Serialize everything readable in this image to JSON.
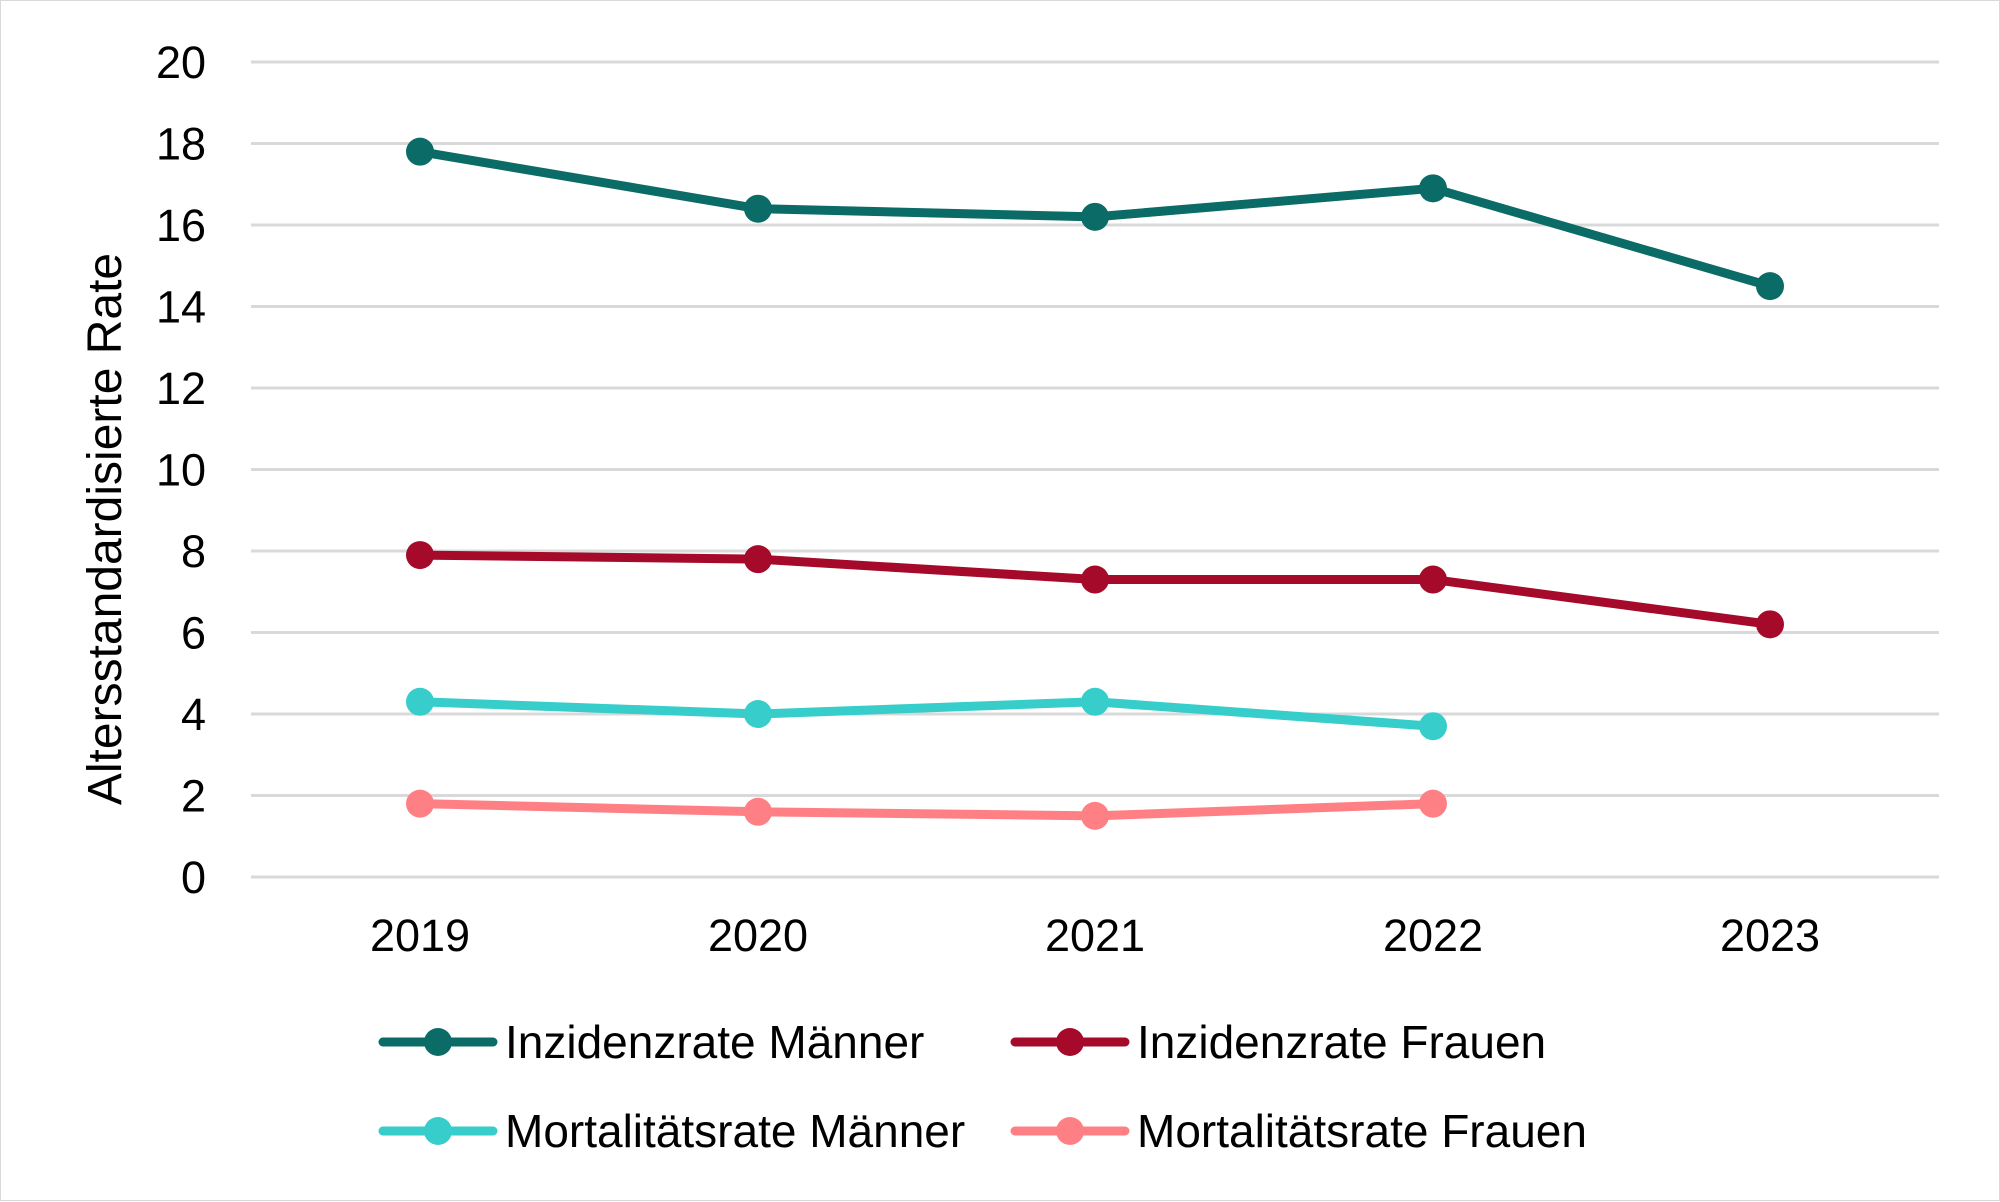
{
  "chart_data": {
    "type": "line",
    "title": "",
    "xlabel": "",
    "ylabel": "Altersstandardisierte Rate",
    "categories": [
      "2019",
      "2020",
      "2021",
      "2022",
      "2023"
    ],
    "ylim": [
      0,
      20
    ],
    "yticks": [
      0,
      2,
      4,
      6,
      8,
      10,
      12,
      14,
      16,
      18,
      20
    ],
    "grid": true,
    "legend_position": "bottom",
    "series": [
      {
        "name": "Inzidenzrate Männer",
        "color": "#0b6b66",
        "values": [
          17.8,
          16.4,
          16.2,
          16.9,
          14.5
        ]
      },
      {
        "name": "Inzidenzrate Frauen",
        "color": "#a50a2a",
        "values": [
          7.9,
          7.8,
          7.3,
          7.3,
          6.2
        ]
      },
      {
        "name": "Mortalitätsrate Männer",
        "color": "#36cdcb",
        "values": [
          4.3,
          4.0,
          4.3,
          3.7,
          null
        ]
      },
      {
        "name": "Mortalitätsrate Frauen",
        "color": "#ff8084",
        "values": [
          1.8,
          1.6,
          1.5,
          1.8,
          null
        ]
      }
    ]
  }
}
